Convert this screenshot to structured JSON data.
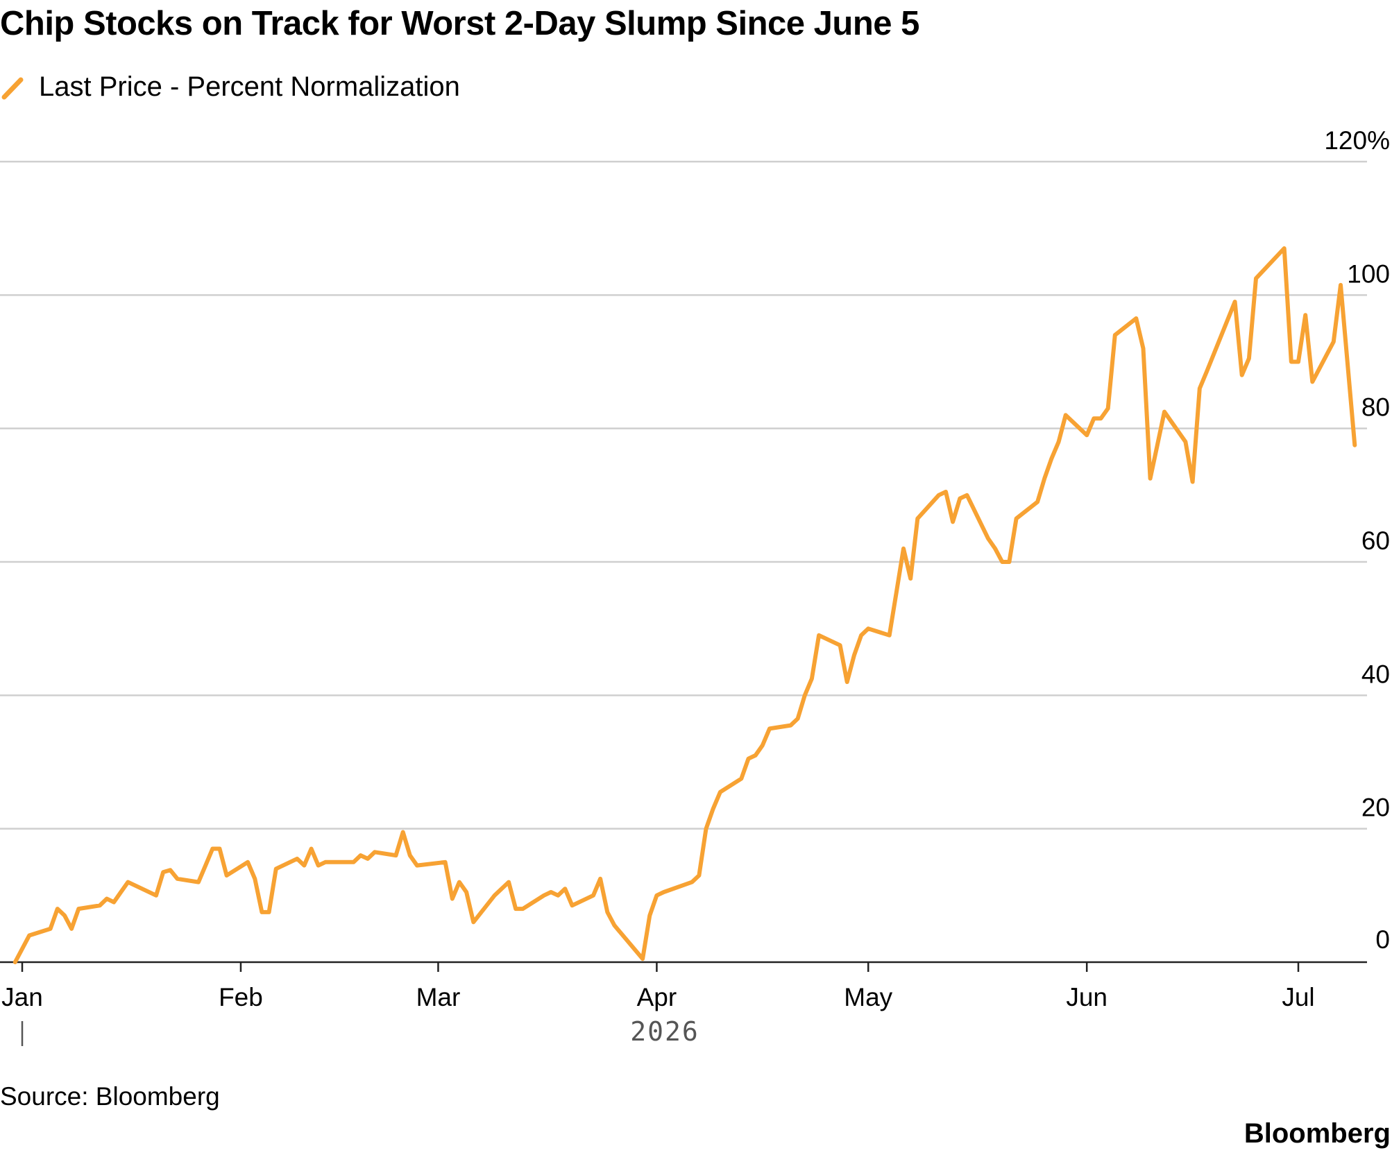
{
  "header": {
    "title": "Chip Stocks on Track for Worst 2-Day Slump Since June 5"
  },
  "legend": {
    "label": "Last Price - Percent Normalization",
    "color": "#f7a233",
    "icon": "diagonal-line-icon"
  },
  "footer": {
    "source": "Source: Bloomberg",
    "brand": "Bloomberg"
  },
  "chart_data": {
    "type": "line",
    "title": "Chip Stocks on Track for Worst 2-Day Slump Since June 5",
    "xlabel": "2026",
    "ylabel": "",
    "ylim": [
      0,
      120
    ],
    "y_ticks": [
      0,
      20,
      40,
      60,
      80,
      100,
      120
    ],
    "y_tick_labels": [
      "0",
      "20",
      "40",
      "60",
      "80",
      "100",
      "120%"
    ],
    "x_ticks": [
      {
        "date": "2026-01-01",
        "label": "Jan"
      },
      {
        "date": "2026-02-01",
        "label": "Feb"
      },
      {
        "date": "2026-03-01",
        "label": "Mar"
      },
      {
        "date": "2026-04-01",
        "label": "Apr"
      },
      {
        "date": "2026-05-01",
        "label": "May"
      },
      {
        "date": "2026-06-01",
        "label": "Jun"
      },
      {
        "date": "2026-07-01",
        "label": "Jul"
      }
    ],
    "year_label": "2026",
    "grid": true,
    "legend_position": "top-left",
    "series": [
      {
        "name": "Last Price - Percent Normalization",
        "color": "#f7a233",
        "points": [
          [
            "2025-12-31",
            0
          ],
          [
            "2026-01-02",
            4
          ],
          [
            "2026-01-05",
            5
          ],
          [
            "2026-01-06",
            8
          ],
          [
            "2026-01-07",
            7
          ],
          [
            "2026-01-08",
            5
          ],
          [
            "2026-01-09",
            8
          ],
          [
            "2026-01-12",
            8.5
          ],
          [
            "2026-01-13",
            9.5
          ],
          [
            "2026-01-14",
            9
          ],
          [
            "2026-01-15",
            10.5
          ],
          [
            "2026-01-16",
            12
          ],
          [
            "2026-01-20",
            10
          ],
          [
            "2026-01-21",
            13.5
          ],
          [
            "2026-01-22",
            13.8
          ],
          [
            "2026-01-23",
            12.5
          ],
          [
            "2026-01-26",
            12
          ],
          [
            "2026-01-27",
            14.5
          ],
          [
            "2026-01-28",
            17
          ],
          [
            "2026-01-29",
            17
          ],
          [
            "2026-01-30",
            13
          ],
          [
            "2026-02-02",
            15
          ],
          [
            "2026-02-03",
            12.5
          ],
          [
            "2026-02-04",
            7.5
          ],
          [
            "2026-02-05",
            7.5
          ],
          [
            "2026-02-06",
            14
          ],
          [
            "2026-02-09",
            15.5
          ],
          [
            "2026-02-10",
            14.5
          ],
          [
            "2026-02-11",
            17
          ],
          [
            "2026-02-12",
            14.5
          ],
          [
            "2026-02-13",
            15
          ],
          [
            "2026-02-17",
            15
          ],
          [
            "2026-02-18",
            16
          ],
          [
            "2026-02-19",
            15.5
          ],
          [
            "2026-02-20",
            16.5
          ],
          [
            "2026-02-23",
            16
          ],
          [
            "2026-02-24",
            19.5
          ],
          [
            "2026-02-25",
            16
          ],
          [
            "2026-02-26",
            14.5
          ],
          [
            "2026-03-02",
            15
          ],
          [
            "2026-03-03",
            9.5
          ],
          [
            "2026-03-04",
            12
          ],
          [
            "2026-03-05",
            10.5
          ],
          [
            "2026-03-06",
            6
          ],
          [
            "2026-03-09",
            10
          ],
          [
            "2026-03-10",
            11
          ],
          [
            "2026-03-11",
            12
          ],
          [
            "2026-03-12",
            8
          ],
          [
            "2026-03-13",
            8
          ],
          [
            "2026-03-16",
            10
          ],
          [
            "2026-03-17",
            10.5
          ],
          [
            "2026-03-18",
            10
          ],
          [
            "2026-03-19",
            11
          ],
          [
            "2026-03-20",
            8.5
          ],
          [
            "2026-03-23",
            10
          ],
          [
            "2026-03-24",
            12.5
          ],
          [
            "2026-03-25",
            7.5
          ],
          [
            "2026-03-26",
            5.5
          ],
          [
            "2026-03-30",
            0.5
          ],
          [
            "2026-03-31",
            7
          ],
          [
            "2026-04-01",
            10
          ],
          [
            "2026-04-02",
            10.5
          ],
          [
            "2026-04-06",
            12
          ],
          [
            "2026-04-07",
            13
          ],
          [
            "2026-04-08",
            20
          ],
          [
            "2026-04-09",
            23
          ],
          [
            "2026-04-10",
            25.5
          ],
          [
            "2026-04-13",
            27.5
          ],
          [
            "2026-04-14",
            30.5
          ],
          [
            "2026-04-15",
            31
          ],
          [
            "2026-04-16",
            32.5
          ],
          [
            "2026-04-17",
            35
          ],
          [
            "2026-04-20",
            35.5
          ],
          [
            "2026-04-21",
            36.5
          ],
          [
            "2026-04-22",
            40
          ],
          [
            "2026-04-23",
            42.5
          ],
          [
            "2026-04-24",
            49
          ],
          [
            "2026-04-27",
            47.5
          ],
          [
            "2026-04-28",
            42
          ],
          [
            "2026-04-29",
            46
          ],
          [
            "2026-04-30",
            49
          ],
          [
            "2026-05-01",
            50
          ],
          [
            "2026-05-04",
            49
          ],
          [
            "2026-05-05",
            55.5
          ],
          [
            "2026-05-06",
            62
          ],
          [
            "2026-05-07",
            57.5
          ],
          [
            "2026-05-08",
            66.5
          ],
          [
            "2026-05-11",
            70
          ],
          [
            "2026-05-12",
            70.5
          ],
          [
            "2026-05-13",
            66
          ],
          [
            "2026-05-14",
            69.5
          ],
          [
            "2026-05-15",
            70
          ],
          [
            "2026-05-18",
            63.5
          ],
          [
            "2026-05-19",
            62
          ],
          [
            "2026-05-20",
            60
          ],
          [
            "2026-05-21",
            60
          ],
          [
            "2026-05-22",
            66.5
          ],
          [
            "2026-05-25",
            69
          ],
          [
            "2026-05-26",
            72.5
          ],
          [
            "2026-05-27",
            75.5
          ],
          [
            "2026-05-28",
            78
          ],
          [
            "2026-05-29",
            82
          ],
          [
            "2026-06-01",
            79
          ],
          [
            "2026-06-02",
            81.5
          ],
          [
            "2026-06-03",
            81.5
          ],
          [
            "2026-06-04",
            83
          ],
          [
            "2026-06-05",
            94
          ],
          [
            "2026-06-08",
            96.5
          ],
          [
            "2026-06-09",
            92
          ],
          [
            "2026-06-10",
            72.5
          ],
          [
            "2026-06-11",
            77.5
          ],
          [
            "2026-06-12",
            82.5
          ],
          [
            "2026-06-15",
            78
          ],
          [
            "2026-06-16",
            72
          ],
          [
            "2026-06-17",
            86
          ],
          [
            "2026-06-18",
            88.5
          ],
          [
            "2026-06-22",
            99
          ],
          [
            "2026-06-23",
            88
          ],
          [
            "2026-06-24",
            90.5
          ],
          [
            "2026-06-25",
            102.5
          ],
          [
            "2026-06-29",
            107
          ],
          [
            "2026-06-30",
            90
          ],
          [
            "2026-07-01",
            90
          ],
          [
            "2026-07-02",
            97
          ],
          [
            "2026-07-03",
            87
          ],
          [
            "2026-07-06",
            93
          ],
          [
            "2026-07-07",
            101.5
          ],
          [
            "2026-07-09",
            77.5
          ]
        ]
      }
    ]
  }
}
